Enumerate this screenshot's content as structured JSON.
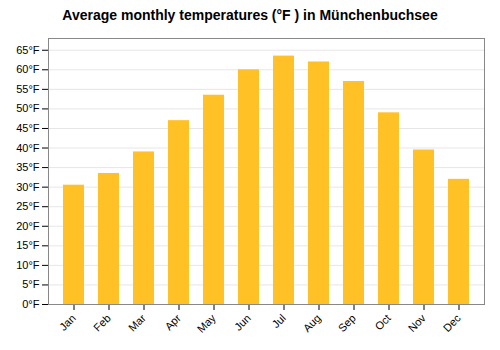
{
  "chart_data": {
    "type": "bar",
    "title": "Average monthly temperatures (°F ) in Münchenbuchsee",
    "categories": [
      "Jan",
      "Feb",
      "Mar",
      "Apr",
      "May",
      "Jun",
      "Jul",
      "Aug",
      "Sep",
      "Oct",
      "Nov",
      "Dec"
    ],
    "values": [
      30.5,
      33.5,
      39.0,
      47.0,
      53.5,
      60.0,
      63.5,
      62.0,
      57.0,
      49.0,
      39.5,
      32.0
    ],
    "color": "#FFC125",
    "ylim": [
      0,
      68
    ],
    "yticks": [
      {
        "value": 0,
        "label": "0°F"
      },
      {
        "value": 5,
        "label": "5°F"
      },
      {
        "value": 10,
        "label": "10°F"
      },
      {
        "value": 15,
        "label": "15°F"
      },
      {
        "value": 20,
        "label": "20°F"
      },
      {
        "value": 25,
        "label": "25°F"
      },
      {
        "value": 30,
        "label": "30°F"
      },
      {
        "value": 35,
        "label": "35°F"
      },
      {
        "value": 40,
        "label": "40°F"
      },
      {
        "value": 45,
        "label": "45°F"
      },
      {
        "value": 50,
        "label": "50°F"
      },
      {
        "value": 55,
        "label": "55°F"
      },
      {
        "value": 60,
        "label": "60°F"
      },
      {
        "value": 65,
        "label": "65°F"
      }
    ],
    "grid": true
  }
}
